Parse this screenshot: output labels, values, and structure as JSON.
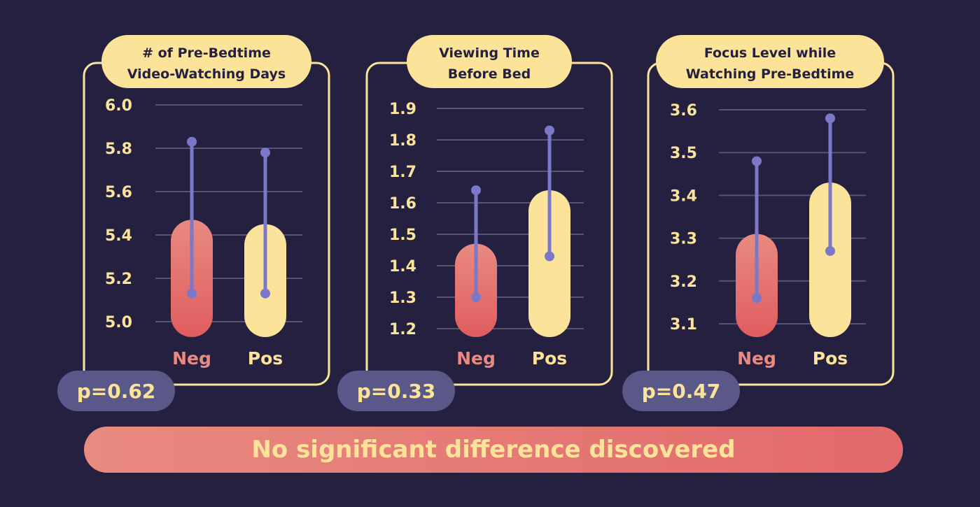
{
  "colors": {
    "background": "#25203f",
    "panel_border": "#fbe49a",
    "title_fill": "#fbe49a",
    "title_text": "#25203f",
    "neg_bar_top": "#e88a80",
    "neg_bar_bottom": "#e05d5f",
    "pos_bar": "#fbe49a",
    "error_bar": "#7b78c9",
    "neg_label": "#e88a80",
    "pos_label": "#fbe49a",
    "tick_text": "#fbe49a",
    "pvalue_fill": "#5a5888",
    "pvalue_text": "#fbe49a",
    "gridline": "#56546e"
  },
  "chart_data": [
    {
      "type": "bar",
      "title": "# of Pre-Bedtime Video-Watching Days",
      "title_lines": [
        "# of Pre-Bedtime",
        "Video-Watching Days"
      ],
      "categories": [
        "Neg",
        "Pos"
      ],
      "values": [
        5.47,
        5.45
      ],
      "error_low": [
        5.13,
        5.13
      ],
      "error_high": [
        5.83,
        5.78
      ],
      "ylim": [
        5.0,
        6.0
      ],
      "yticks": [
        "6.0",
        "5.8",
        "5.6",
        "5.4",
        "5.2",
        "5.0"
      ],
      "grid": true,
      "p_value": "p=0.62"
    },
    {
      "type": "bar",
      "title": "Viewing Time Before Bed",
      "title_lines": [
        "Viewing Time",
        "Before Bed"
      ],
      "categories": [
        "Neg",
        "Pos"
      ],
      "values": [
        1.47,
        1.64
      ],
      "error_low": [
        1.3,
        1.43
      ],
      "error_high": [
        1.64,
        1.83
      ],
      "ylim": [
        1.2,
        1.9
      ],
      "yticks": [
        "1.9",
        "1.8",
        "1.7",
        "1.6",
        "1.5",
        "1.4",
        "1.3",
        "1.2"
      ],
      "grid": true,
      "p_value": "p=0.33"
    },
    {
      "type": "bar",
      "title": "Focus Level while Watching Pre-Bedtime",
      "title_lines": [
        "Focus Level while",
        "Watching Pre-Bedtime"
      ],
      "categories": [
        "Neg",
        "Pos"
      ],
      "values": [
        3.31,
        3.43
      ],
      "error_low": [
        3.16,
        3.27
      ],
      "error_high": [
        3.48,
        3.58
      ],
      "ylim": [
        3.1,
        3.6
      ],
      "yticks": [
        "3.6",
        "3.5",
        "3.4",
        "3.3",
        "3.2",
        "3.1"
      ],
      "grid": true,
      "p_value": "p=0.47"
    }
  ],
  "conclusion": "No significant difference discovered"
}
